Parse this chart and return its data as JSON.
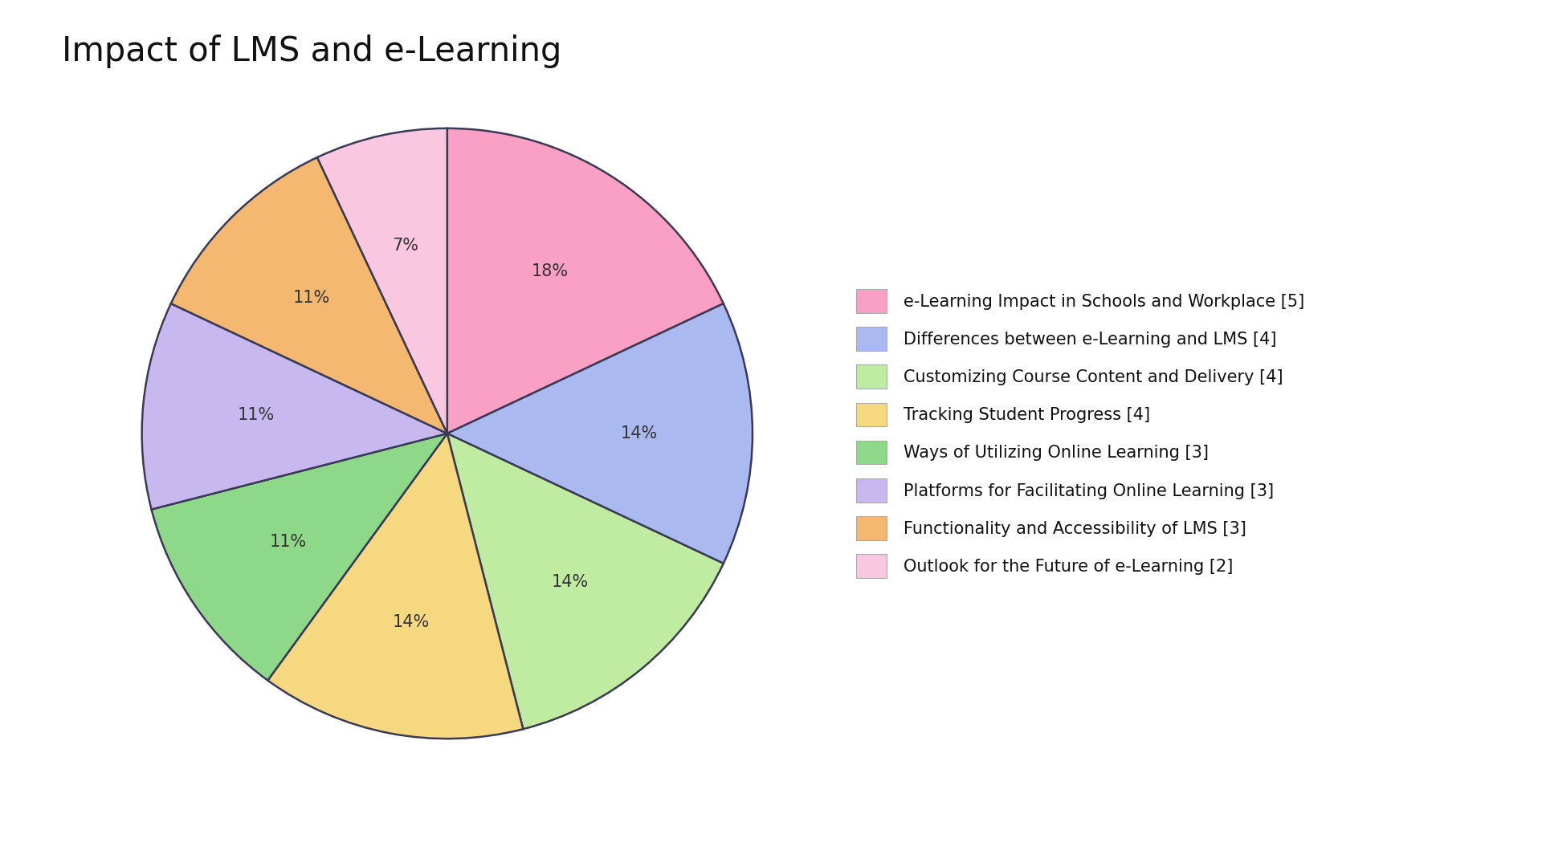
{
  "title": "Impact of LMS and e-Learning",
  "slices": [
    {
      "label": "e-Learning Impact in Schools and Workplace [5]",
      "value": 18,
      "color": "#F9A0C4"
    },
    {
      "label": "Differences between e-Learning and LMS [4]",
      "value": 14,
      "color": "#AABAF0"
    },
    {
      "label": "Customizing Course Content and Delivery [4]",
      "value": 14,
      "color": "#BFECA0"
    },
    {
      "label": "Tracking Student Progress [4]",
      "value": 14,
      "color": "#F5D880"
    },
    {
      "label": "Ways of Utilizing Online Learning [3]",
      "value": 11,
      "color": "#8ED88A"
    },
    {
      "label": "Platforms for Facilitating Online Learning [3]",
      "value": 11,
      "color": "#C8B8F0"
    },
    {
      "label": "Functionality and Accessibility of LMS [3]",
      "value": 11,
      "color": "#F5B870"
    },
    {
      "label": "Outlook for the Future of e-Learning [2]",
      "value": 7,
      "color": "#F9C8E0"
    }
  ],
  "background_color": "#FFFFFF",
  "title_fontsize": 30,
  "label_fontsize": 15,
  "legend_fontsize": 15,
  "pie_edge_color": "#3A3A55",
  "pie_linewidth": 1.8
}
